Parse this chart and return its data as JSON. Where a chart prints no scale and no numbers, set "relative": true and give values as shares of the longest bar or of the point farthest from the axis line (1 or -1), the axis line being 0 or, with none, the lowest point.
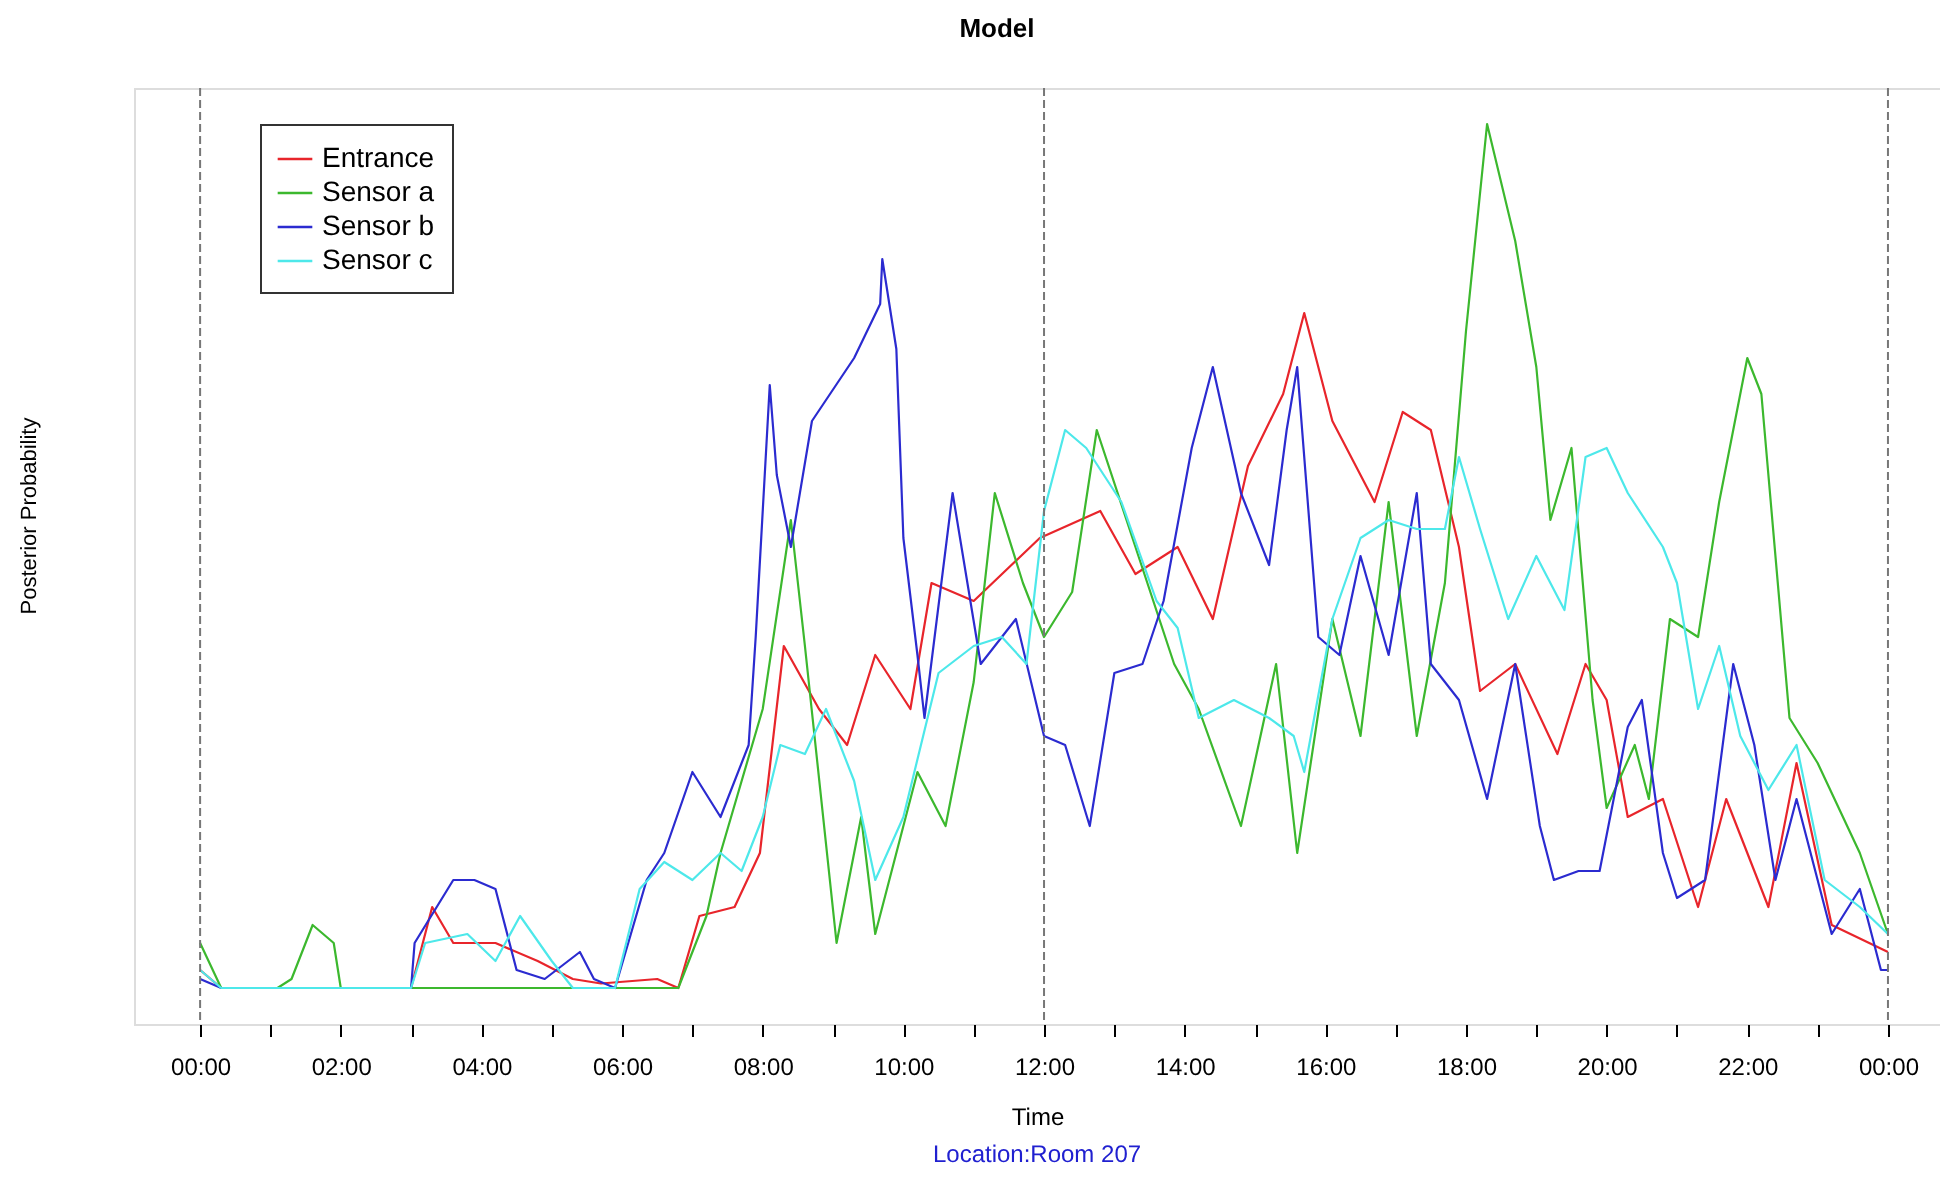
{
  "chart_data": {
    "type": "line",
    "title": "Model",
    "xlabel": "Time",
    "ylabel": "Posterior Probability",
    "relative": true,
    "annotations": [
      "Location:Room 207"
    ],
    "xlim": [
      -0.94,
      24.74
    ],
    "xticks": [
      {
        "value": 0,
        "label": "00:00"
      },
      {
        "value": 1,
        "label": null
      },
      {
        "value": 2,
        "label": "02:00"
      },
      {
        "value": 3,
        "label": null
      },
      {
        "value": 4,
        "label": "04:00"
      },
      {
        "value": 5,
        "label": null
      },
      {
        "value": 6,
        "label": "06:00"
      },
      {
        "value": 7,
        "label": null
      },
      {
        "value": 8,
        "label": "08:00"
      },
      {
        "value": 9,
        "label": null
      },
      {
        "value": 10,
        "label": "10:00"
      },
      {
        "value": 11,
        "label": null
      },
      {
        "value": 12,
        "label": "12:00"
      },
      {
        "value": 13,
        "label": null
      },
      {
        "value": 14,
        "label": "14:00"
      },
      {
        "value": 15,
        "label": null
      },
      {
        "value": 16,
        "label": "16:00"
      },
      {
        "value": 17,
        "label": null
      },
      {
        "value": 18,
        "label": "18:00"
      },
      {
        "value": 19,
        "label": null
      },
      {
        "value": 20,
        "label": "20:00"
      },
      {
        "value": 21,
        "label": null
      },
      {
        "value": 22,
        "label": "22:00"
      },
      {
        "value": 23,
        "label": null
      },
      {
        "value": 24,
        "label": "00:00"
      }
    ],
    "ref_lines": [
      {
        "axis": "x",
        "value": 0,
        "color": "#777777",
        "line_style": "dashed"
      },
      {
        "axis": "x",
        "value": 12,
        "color": "#777777",
        "line_style": "dashed"
      },
      {
        "axis": "x",
        "value": 24,
        "color": "#777777",
        "line_style": "dashed"
      }
    ],
    "grid": false,
    "legend": "top left",
    "marker": "none",
    "line_style": "solid",
    "series": [
      {
        "name": "Entrance",
        "color": "#e8252b",
        "x": [
          0,
          0.3,
          3.0,
          3.3,
          3.6,
          4.2,
          4.8,
          5.3,
          5.7,
          6.5,
          6.8,
          7.1,
          7.6,
          7.96,
          8.3,
          8.8,
          9.2,
          9.6,
          10.1,
          10.4,
          11.0,
          11.94,
          12.8,
          13.3,
          13.9,
          14.4,
          14.9,
          15.4,
          15.7,
          16.1,
          16.7,
          17.1,
          17.5,
          17.9,
          18.2,
          18.7,
          19.3,
          19.7,
          20.0,
          20.3,
          20.8,
          21.3,
          21.7,
          22.3,
          22.7,
          23.2,
          24.0
        ],
        "values": [
          0.06,
          0.04,
          0.04,
          0.13,
          0.09,
          0.09,
          0.07,
          0.05,
          0.045,
          0.05,
          0.04,
          0.12,
          0.13,
          0.19,
          0.42,
          0.35,
          0.31,
          0.41,
          0.35,
          0.49,
          0.47,
          0.54,
          0.57,
          0.5,
          0.53,
          0.45,
          0.62,
          0.7,
          0.79,
          0.67,
          0.58,
          0.68,
          0.66,
          0.53,
          0.37,
          0.4,
          0.3,
          0.4,
          0.36,
          0.23,
          0.25,
          0.13,
          0.25,
          0.13,
          0.29,
          0.11,
          0.08
        ]
      },
      {
        "name": "Sensor a",
        "color": "#3cb82e",
        "x": [
          0,
          0.3,
          1.1,
          1.3,
          1.6,
          1.9,
          2.0,
          6.8,
          7.2,
          7.4,
          8.0,
          8.4,
          8.6,
          9.05,
          9.4,
          9.6,
          10.2,
          10.6,
          11.0,
          11.3,
          11.7,
          12.0,
          12.4,
          12.75,
          13.3,
          13.85,
          14.2,
          14.8,
          15.3,
          15.6,
          16.1,
          16.5,
          16.9,
          17.3,
          17.7,
          18.0,
          18.3,
          18.7,
          19.0,
          19.2,
          19.5,
          19.8,
          20.0,
          20.4,
          20.6,
          20.9,
          21.3,
          21.6,
          22.0,
          22.2,
          22.6,
          23.0,
          23.6,
          24.0
        ],
        "values": [
          0.09,
          0.04,
          0.04,
          0.05,
          0.11,
          0.09,
          0.04,
          0.04,
          0.12,
          0.19,
          0.35,
          0.56,
          0.42,
          0.09,
          0.23,
          0.1,
          0.28,
          0.22,
          0.38,
          0.59,
          0.49,
          0.43,
          0.48,
          0.66,
          0.53,
          0.4,
          0.35,
          0.22,
          0.4,
          0.19,
          0.45,
          0.32,
          0.58,
          0.32,
          0.49,
          0.77,
          1,
          0.87,
          0.73,
          0.56,
          0.64,
          0.36,
          0.24,
          0.31,
          0.25,
          0.45,
          0.43,
          0.58,
          0.74,
          0.7,
          0.34,
          0.29,
          0.19,
          0.1
        ]
      },
      {
        "name": "Sensor b",
        "color": "#2b2bd0",
        "x": [
          0,
          0.3,
          3.0,
          3.05,
          3.6,
          3.9,
          4.2,
          4.5,
          4.9,
          5.4,
          5.6,
          5.9,
          6.35,
          6.6,
          7.0,
          7.4,
          7.8,
          7.9,
          8.1,
          8.2,
          8.4,
          8.7,
          9.3,
          9.67,
          9.7,
          9.9,
          10.0,
          10.2,
          10.3,
          10.7,
          11.1,
          11.6,
          12.0,
          12.3,
          12.65,
          13.0,
          13.4,
          13.7,
          14.1,
          14.4,
          14.8,
          15.2,
          15.45,
          15.6,
          15.9,
          16.2,
          16.5,
          16.9,
          17.3,
          17.5,
          17.9,
          18.3,
          18.7,
          19.05,
          19.25,
          19.6,
          19.9,
          20.3,
          20.5,
          20.8,
          21.0,
          21.4,
          21.8,
          22.1,
          22.4,
          22.7,
          23.2,
          23.6,
          23.9,
          24.0
        ],
        "values": [
          0.05,
          0.04,
          0.04,
          0.09,
          0.16,
          0.16,
          0.15,
          0.06,
          0.05,
          0.08,
          0.05,
          0.04,
          0.16,
          0.19,
          0.28,
          0.23,
          0.31,
          0.43,
          0.71,
          0.61,
          0.53,
          0.67,
          0.74,
          0.8,
          0.85,
          0.75,
          0.54,
          0.41,
          0.34,
          0.59,
          0.4,
          0.45,
          0.32,
          0.31,
          0.22,
          0.39,
          0.4,
          0.47,
          0.64,
          0.73,
          0.59,
          0.51,
          0.66,
          0.73,
          0.43,
          0.41,
          0.52,
          0.41,
          0.59,
          0.4,
          0.36,
          0.25,
          0.4,
          0.22,
          0.16,
          0.17,
          0.17,
          0.33,
          0.36,
          0.19,
          0.14,
          0.16,
          0.4,
          0.31,
          0.16,
          0.25,
          0.1,
          0.15,
          0.06,
          0.06
        ]
      },
      {
        "name": "Sensor c",
        "color": "#4de8ea",
        "x": [
          0,
          0.3,
          3.0,
          3.2,
          3.8,
          4.2,
          4.55,
          5.0,
          5.3,
          5.9,
          6.25,
          6.6,
          7.0,
          7.4,
          7.7,
          8.0,
          8.25,
          8.6,
          8.9,
          9.3,
          9.6,
          10.0,
          10.5,
          11.0,
          11.4,
          11.75,
          12.0,
          12.3,
          12.6,
          13.1,
          13.6,
          13.9,
          14.2,
          14.7,
          15.2,
          15.55,
          15.7,
          16.1,
          16.5,
          16.9,
          17.3,
          17.7,
          17.9,
          18.2,
          18.6,
          19.0,
          19.4,
          19.7,
          20.0,
          20.3,
          20.8,
          21.0,
          21.3,
          21.6,
          21.9,
          22.3,
          22.7,
          23.1,
          23.6,
          24.0
        ],
        "values": [
          0.06,
          0.04,
          0.04,
          0.09,
          0.1,
          0.07,
          0.12,
          0.07,
          0.04,
          0.04,
          0.15,
          0.18,
          0.16,
          0.19,
          0.17,
          0.23,
          0.31,
          0.3,
          0.35,
          0.27,
          0.16,
          0.23,
          0.39,
          0.42,
          0.43,
          0.4,
          0.57,
          0.66,
          0.64,
          0.58,
          0.47,
          0.44,
          0.34,
          0.36,
          0.34,
          0.32,
          0.28,
          0.45,
          0.54,
          0.56,
          0.55,
          0.55,
          0.63,
          0.55,
          0.45,
          0.52,
          0.46,
          0.63,
          0.64,
          0.59,
          0.53,
          0.49,
          0.35,
          0.42,
          0.32,
          0.26,
          0.31,
          0.16,
          0.13,
          0.1
        ]
      }
    ]
  }
}
